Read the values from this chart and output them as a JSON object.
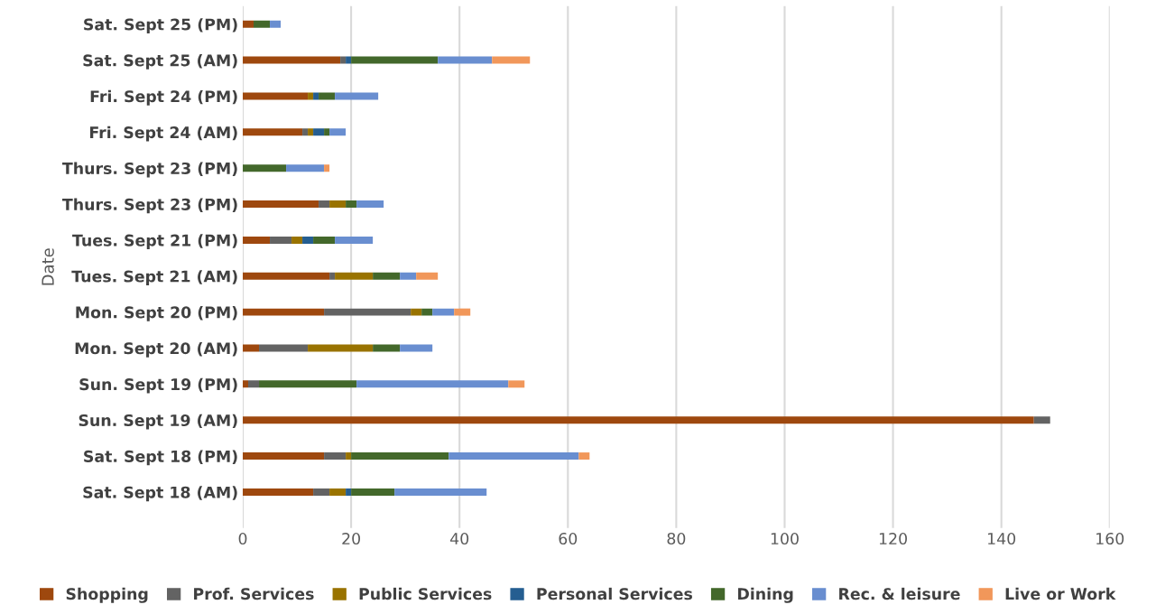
{
  "chart_data": {
    "type": "bar",
    "orientation": "horizontal",
    "stacked": true,
    "ylabel": "Date",
    "categories": [
      "Sat. Sept 25 (PM)",
      "Sat. Sept 25 (AM)",
      "Fri. Sept 24 (PM)",
      "Fri. Sept 24 (AM)",
      "Thurs. Sept 23 (PM)",
      "Thurs. Sept 23 (PM)",
      "Tues. Sept 21 (PM)",
      "Tues. Sept 21 (AM)",
      "Mon. Sept 20 (PM)",
      "Mon. Sept 20 (AM)",
      "Sun. Sept 19 (PM)",
      "Sun. Sept 19 (AM)",
      "Sat. Sept 18 (PM)",
      "Sat. Sept 18 (AM)"
    ],
    "series": [
      {
        "name": "Shopping",
        "color": "#9e480e",
        "values": [
          2,
          18,
          12,
          11,
          0,
          14,
          5,
          16,
          15,
          3,
          1,
          146,
          15,
          13
        ]
      },
      {
        "name": "Prof. Services",
        "color": "#636363",
        "values": [
          0,
          1,
          0,
          1,
          0,
          2,
          4,
          1,
          16,
          9,
          2,
          3,
          4,
          3
        ]
      },
      {
        "name": "Public Services",
        "color": "#997300",
        "values": [
          0,
          0,
          1,
          1,
          0,
          3,
          2,
          7,
          2,
          12,
          0,
          0,
          1,
          3
        ]
      },
      {
        "name": "Personal Services",
        "color": "#255e91",
        "values": [
          0,
          1,
          1,
          2,
          0,
          0,
          2,
          0,
          0,
          0,
          0,
          0,
          0,
          1
        ]
      },
      {
        "name": "Dining",
        "color": "#43682b",
        "values": [
          3,
          16,
          3,
          1,
          8,
          2,
          4,
          5,
          2,
          5,
          18,
          0,
          18,
          8
        ]
      },
      {
        "name": "Rec. & leisure",
        "color": "#698ed0",
        "values": [
          2,
          10,
          8,
          3,
          7,
          5,
          7,
          3,
          4,
          6,
          28,
          0,
          24,
          17
        ]
      },
      {
        "name": "Live or Work",
        "color": "#f1975a",
        "values": [
          0,
          7,
          0,
          0,
          1,
          0,
          0,
          4,
          3,
          0,
          3,
          0,
          2,
          0
        ]
      }
    ],
    "xlim": [
      0,
      160
    ],
    "xticks": [
      0,
      20,
      40,
      60,
      80,
      100,
      120,
      140,
      160
    ],
    "grid": "x",
    "legend": "bottom"
  }
}
